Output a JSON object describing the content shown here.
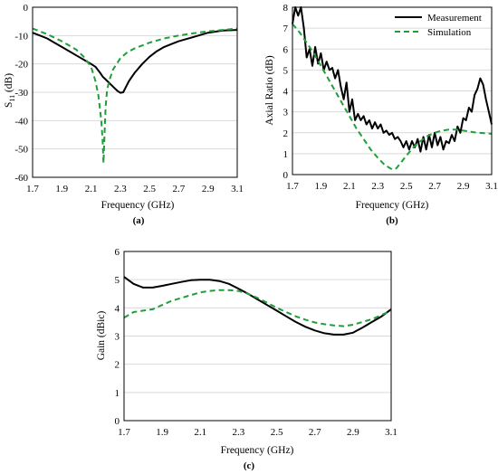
{
  "figure": {
    "panels": [
      "(a)",
      "(b)",
      "(c)"
    ]
  },
  "chart_data": [
    {
      "id": "a",
      "type": "line",
      "xlabel": "Frequency (GHz)",
      "ylabel_main": "S",
      "ylabel_sub": "11",
      "ylabel_unit": " (dB)",
      "xlim": [
        1.7,
        3.1
      ],
      "ylim": [
        -60,
        0
      ],
      "xticks": [
        "1.7",
        "1.9",
        "2.1",
        "2.3",
        "2.5",
        "2.7",
        "2.9",
        "3.1"
      ],
      "yticks": [
        "-60",
        "-50",
        "-40",
        "-30",
        "-20",
        "-10",
        "0"
      ],
      "grid": true,
      "series": [
        {
          "name": "Measurement",
          "color": "#000000",
          "dash": "none",
          "x": [
            1.7,
            1.75,
            1.8,
            1.85,
            1.9,
            1.95,
            2.0,
            2.05,
            2.1,
            2.13,
            2.16,
            2.18,
            2.2,
            2.22,
            2.24,
            2.26,
            2.28,
            2.3,
            2.32,
            2.34,
            2.36,
            2.4,
            2.45,
            2.5,
            2.55,
            2.6,
            2.65,
            2.7,
            2.8,
            2.9,
            3.0,
            3.1
          ],
          "y": [
            -9,
            -10,
            -11,
            -12.5,
            -14,
            -15.5,
            -17,
            -18.5,
            -20,
            -21,
            -23,
            -24.5,
            -25.5,
            -26.5,
            -27.5,
            -28.5,
            -29.5,
            -30.2,
            -30,
            -28,
            -26,
            -23,
            -20,
            -17.5,
            -15.5,
            -14,
            -13,
            -12,
            -10.5,
            -9,
            -8.2,
            -8
          ]
        },
        {
          "name": "Simulation",
          "color": "#1f9e3a",
          "dash": "6,4",
          "x": [
            1.7,
            1.8,
            1.9,
            2.0,
            2.05,
            2.1,
            2.13,
            2.15,
            2.17,
            2.18,
            2.185,
            2.19,
            2.195,
            2.2,
            2.21,
            2.23,
            2.25,
            2.3,
            2.35,
            2.4,
            2.5,
            2.6,
            2.7,
            2.8,
            2.9,
            3.0,
            3.1
          ],
          "y": [
            -7.5,
            -9.5,
            -12,
            -15,
            -17.5,
            -21,
            -26,
            -31,
            -40,
            -48,
            -55,
            -48,
            -41,
            -35,
            -29,
            -25,
            -22,
            -18,
            -15.8,
            -14.5,
            -12.5,
            -11,
            -10,
            -9.2,
            -8.5,
            -8,
            -7.5
          ]
        }
      ]
    },
    {
      "id": "b",
      "type": "line",
      "xlabel": "Frequency (GHz)",
      "ylabel": "Axial Ratio (dB)",
      "xlim": [
        1.7,
        3.1
      ],
      "ylim": [
        0,
        8
      ],
      "xticks": [
        "1.7",
        "1.9",
        "2.1",
        "2.3",
        "2.5",
        "2.7",
        "2.9",
        "3.1"
      ],
      "yticks": [
        "0",
        "1",
        "2",
        "3",
        "4",
        "5",
        "6",
        "7",
        "8"
      ],
      "grid": true,
      "legend_position": "top-right",
      "series": [
        {
          "name": "Measurement",
          "color": "#000000",
          "dash": "none",
          "x": [
            1.7,
            1.72,
            1.74,
            1.76,
            1.78,
            1.8,
            1.82,
            1.84,
            1.86,
            1.88,
            1.9,
            1.92,
            1.94,
            1.96,
            1.98,
            2.0,
            2.02,
            2.04,
            2.06,
            2.08,
            2.1,
            2.12,
            2.14,
            2.16,
            2.18,
            2.2,
            2.22,
            2.24,
            2.26,
            2.28,
            2.3,
            2.32,
            2.34,
            2.36,
            2.38,
            2.4,
            2.42,
            2.44,
            2.46,
            2.48,
            2.5,
            2.52,
            2.54,
            2.56,
            2.58,
            2.6,
            2.62,
            2.64,
            2.66,
            2.68,
            2.7,
            2.72,
            2.74,
            2.76,
            2.78,
            2.8,
            2.82,
            2.84,
            2.86,
            2.88,
            2.9,
            2.92,
            2.94,
            2.96,
            2.98,
            3.0,
            3.02,
            3.04,
            3.06,
            3.08,
            3.1
          ],
          "y": [
            7.2,
            8.0,
            7.6,
            8.0,
            7.0,
            5.6,
            6.0,
            5.2,
            6.1,
            5.3,
            5.8,
            5.0,
            5.4,
            5.0,
            5.1,
            4.6,
            5.0,
            4.2,
            3.6,
            4.4,
            3.0,
            3.6,
            2.6,
            2.9,
            2.6,
            2.8,
            2.4,
            2.6,
            2.2,
            2.5,
            2.2,
            2.4,
            2.0,
            2.1,
            1.9,
            2.0,
            1.7,
            1.8,
            1.6,
            1.3,
            1.6,
            1.2,
            1.6,
            1.3,
            1.7,
            1.1,
            1.8,
            1.2,
            1.9,
            1.3,
            2.0,
            1.4,
            1.8,
            1.2,
            1.6,
            1.5,
            1.9,
            1.6,
            2.3,
            2.0,
            2.7,
            2.6,
            3.2,
            3.0,
            3.8,
            4.1,
            4.6,
            4.3,
            3.6,
            3.0,
            2.4
          ]
        },
        {
          "name": "Simulation",
          "color": "#1f9e3a",
          "dash": "6,4",
          "x": [
            1.7,
            1.75,
            1.8,
            1.85,
            1.9,
            1.95,
            2.0,
            2.05,
            2.1,
            2.15,
            2.2,
            2.25,
            2.3,
            2.35,
            2.4,
            2.43,
            2.46,
            2.5,
            2.55,
            2.6,
            2.65,
            2.7,
            2.75,
            2.8,
            2.85,
            2.9,
            2.95,
            3.0,
            3.05,
            3.1
          ],
          "y": [
            7.2,
            6.8,
            6.3,
            5.8,
            5.2,
            4.6,
            4.0,
            3.4,
            2.8,
            2.2,
            1.7,
            1.2,
            0.8,
            0.45,
            0.25,
            0.3,
            0.55,
            0.9,
            1.3,
            1.6,
            1.85,
            2.0,
            2.1,
            2.15,
            2.15,
            2.1,
            2.05,
            2.0,
            1.98,
            1.95
          ]
        }
      ]
    },
    {
      "id": "c",
      "type": "line",
      "xlabel": "Frequency (GHz)",
      "ylabel": "Gain (dBic)",
      "xlim": [
        1.7,
        3.1
      ],
      "ylim": [
        0,
        6
      ],
      "xticks": [
        "1.7",
        "1.9",
        "2.1",
        "2.3",
        "2.5",
        "2.7",
        "2.9",
        "3.1"
      ],
      "yticks": [
        "0",
        "1",
        "2",
        "3",
        "4",
        "5",
        "6"
      ],
      "grid": true,
      "series": [
        {
          "name": "Measurement",
          "color": "#000000",
          "dash": "none",
          "x": [
            1.7,
            1.75,
            1.8,
            1.85,
            1.9,
            1.95,
            2.0,
            2.05,
            2.1,
            2.15,
            2.2,
            2.25,
            2.3,
            2.35,
            2.4,
            2.45,
            2.5,
            2.55,
            2.6,
            2.65,
            2.7,
            2.75,
            2.8,
            2.85,
            2.9,
            2.95,
            3.0,
            3.05,
            3.1
          ],
          "y": [
            5.1,
            4.85,
            4.72,
            4.72,
            4.78,
            4.85,
            4.92,
            4.98,
            5.0,
            5.0,
            4.95,
            4.85,
            4.68,
            4.5,
            4.3,
            4.1,
            3.9,
            3.7,
            3.5,
            3.33,
            3.2,
            3.1,
            3.05,
            3.05,
            3.12,
            3.3,
            3.5,
            3.7,
            3.95
          ]
        },
        {
          "name": "Simulation",
          "color": "#1f9e3a",
          "dash": "6,4",
          "x": [
            1.7,
            1.75,
            1.8,
            1.85,
            1.9,
            1.95,
            2.0,
            2.05,
            2.1,
            2.15,
            2.2,
            2.25,
            2.3,
            2.35,
            2.4,
            2.45,
            2.5,
            2.55,
            2.6,
            2.65,
            2.7,
            2.75,
            2.8,
            2.85,
            2.9,
            2.95,
            3.0,
            3.05,
            3.1
          ],
          "y": [
            3.65,
            3.85,
            3.9,
            3.95,
            4.1,
            4.25,
            4.35,
            4.45,
            4.55,
            4.6,
            4.63,
            4.63,
            4.6,
            4.5,
            4.35,
            4.18,
            4.0,
            3.85,
            3.7,
            3.58,
            3.48,
            3.42,
            3.38,
            3.35,
            3.4,
            3.5,
            3.6,
            3.75,
            3.9
          ]
        }
      ]
    }
  ]
}
